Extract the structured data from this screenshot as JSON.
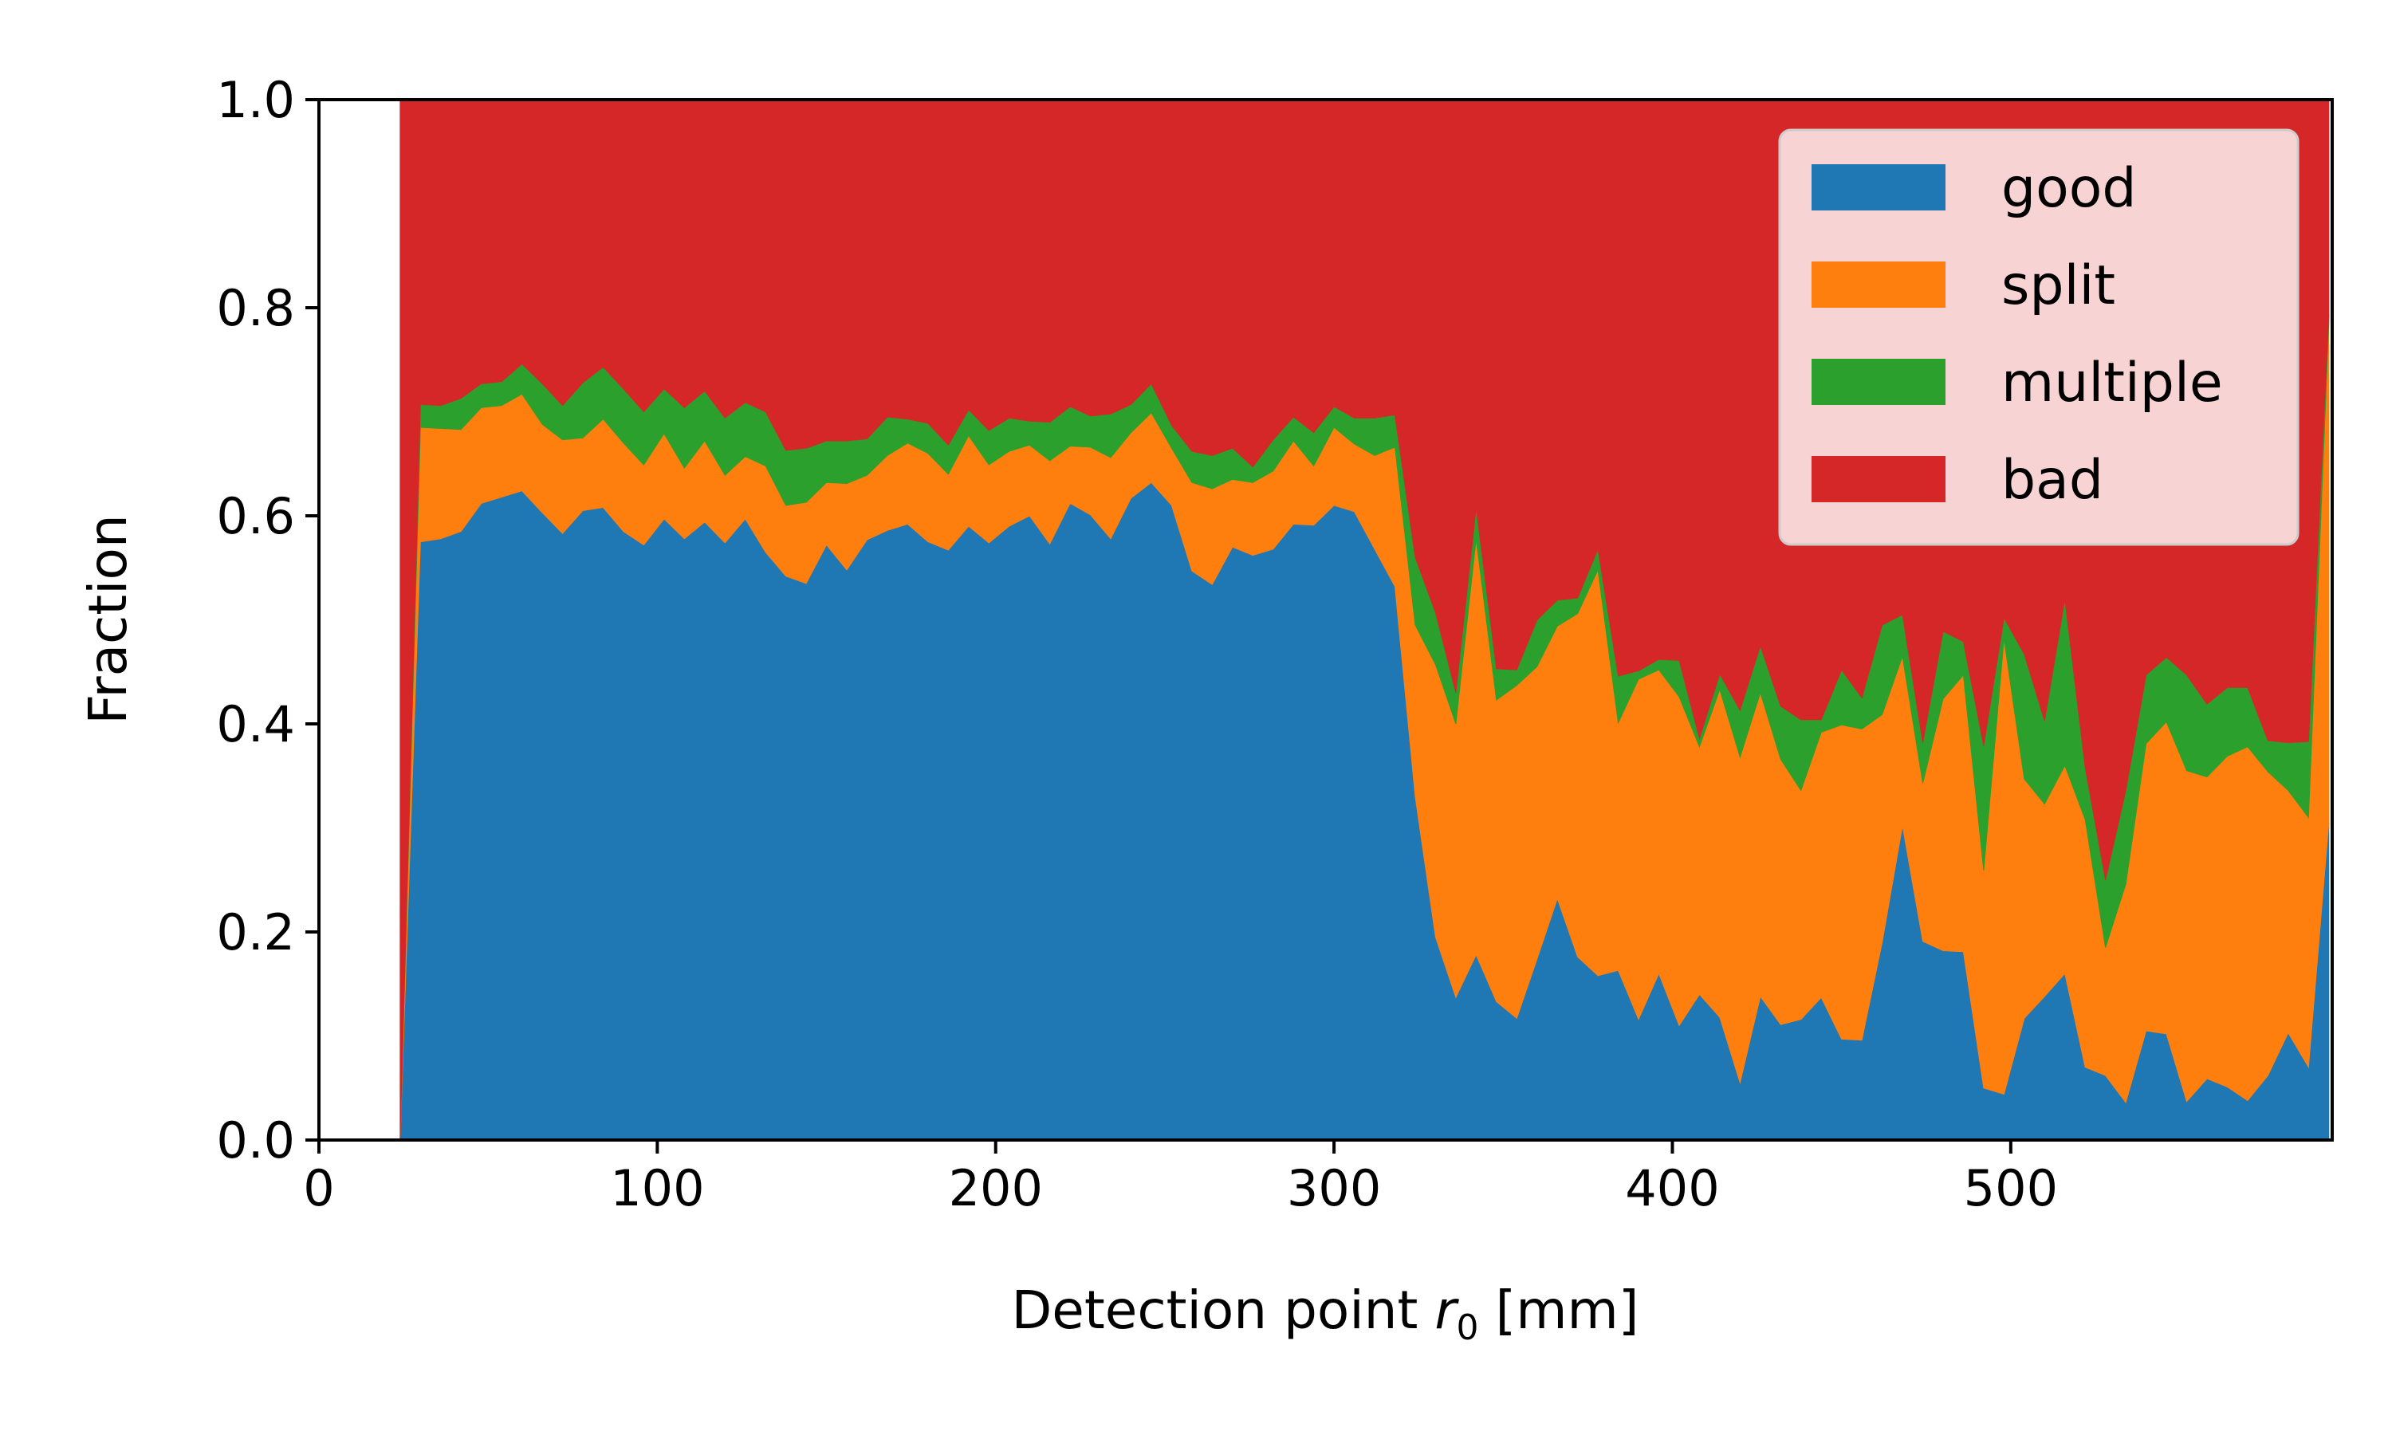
{
  "chart_data": {
    "type": "area",
    "stacked": true,
    "title": "",
    "xlabel_main": "Detection point ",
    "xlabel_var": "r",
    "xlabel_sub": "0",
    "xlabel_unit": " [mm]",
    "ylabel": "Fraction",
    "xlim": [
      0,
      595
    ],
    "ylim": [
      0,
      1
    ],
    "xticks": [
      "0",
      "100",
      "200",
      "300",
      "400",
      "500"
    ],
    "yticks": [
      "0.0",
      "0.2",
      "0.4",
      "0.6",
      "0.8",
      "1.0"
    ],
    "legend_position": "top-right",
    "grid": false,
    "x": [
      24,
      30,
      36,
      42,
      48,
      54,
      60,
      66,
      72,
      78,
      84,
      90,
      96,
      102,
      108,
      114,
      120,
      126,
      132,
      138,
      144,
      150,
      156,
      162,
      168,
      174,
      180,
      186,
      192,
      198,
      204,
      210,
      216,
      222,
      228,
      234,
      240,
      246,
      252,
      258,
      264,
      270,
      276,
      282,
      288,
      294,
      300,
      306,
      312,
      318,
      324,
      330,
      336,
      342,
      348,
      354,
      360,
      366,
      372,
      378,
      384,
      390,
      396,
      402,
      408,
      414,
      420,
      426,
      432,
      438,
      444,
      450,
      456,
      462,
      468,
      474,
      480,
      486,
      492,
      498,
      504,
      510,
      516,
      522,
      528,
      534,
      540,
      546,
      552,
      558,
      564,
      570,
      576,
      582,
      588,
      594
    ],
    "series": [
      {
        "name": "good",
        "color": "#1f77b4",
        "values": [
          0.0,
          0.575,
          0.578,
          0.585,
          0.612,
          0.618,
          0.624,
          0.603,
          0.583,
          0.605,
          0.608,
          0.585,
          0.572,
          0.597,
          0.578,
          0.594,
          0.574,
          0.597,
          0.565,
          0.542,
          0.535,
          0.572,
          0.548,
          0.577,
          0.586,
          0.592,
          0.575,
          0.567,
          0.59,
          0.574,
          0.59,
          0.6,
          0.573,
          0.612,
          0.601,
          0.578,
          0.617,
          0.632,
          0.61,
          0.547,
          0.534,
          0.57,
          0.562,
          0.568,
          0.592,
          0.591,
          0.61,
          0.604,
          0.568,
          0.532,
          0.33,
          0.195,
          0.137,
          0.178,
          0.133,
          0.117,
          0.174,
          0.232,
          0.176,
          0.158,
          0.163,
          0.116,
          0.16,
          0.11,
          0.14,
          0.118,
          0.055,
          0.138,
          0.111,
          0.116,
          0.137,
          0.097,
          0.096,
          0.19,
          0.302,
          0.191,
          0.182,
          0.181,
          0.05,
          0.044,
          0.117,
          0.138,
          0.16,
          0.07,
          0.062,
          0.036,
          0.105,
          0.102,
          0.037,
          0.059,
          0.051,
          0.038,
          0.062,
          0.103,
          0.07,
          0.305
        ]
      },
      {
        "name": "split",
        "color": "#ff7f0e",
        "values": [
          0.0,
          0.11,
          0.106,
          0.098,
          0.092,
          0.088,
          0.093,
          0.085,
          0.09,
          0.07,
          0.085,
          0.085,
          0.077,
          0.082,
          0.068,
          0.078,
          0.065,
          0.06,
          0.083,
          0.068,
          0.078,
          0.06,
          0.083,
          0.062,
          0.072,
          0.078,
          0.085,
          0.073,
          0.087,
          0.075,
          0.072,
          0.068,
          0.08,
          0.055,
          0.065,
          0.078,
          0.063,
          0.067,
          0.055,
          0.085,
          0.092,
          0.065,
          0.07,
          0.075,
          0.08,
          0.057,
          0.075,
          0.065,
          0.09,
          0.134,
          0.165,
          0.262,
          0.263,
          0.4,
          0.29,
          0.32,
          0.281,
          0.262,
          0.33,
          0.39,
          0.238,
          0.327,
          0.292,
          0.316,
          0.238,
          0.315,
          0.313,
          0.292,
          0.255,
          0.22,
          0.255,
          0.302,
          0.299,
          0.219,
          0.163,
          0.152,
          0.242,
          0.266,
          0.209,
          0.438,
          0.23,
          0.185,
          0.2,
          0.238,
          0.123,
          0.21,
          0.276,
          0.3,
          0.318,
          0.29,
          0.318,
          0.34,
          0.292,
          0.233,
          0.24,
          0.48
        ]
      },
      {
        "name": "multiple",
        "color": "#2ca02c",
        "values": [
          0.0,
          0.022,
          0.022,
          0.03,
          0.023,
          0.023,
          0.029,
          0.039,
          0.033,
          0.053,
          0.05,
          0.052,
          0.051,
          0.043,
          0.058,
          0.048,
          0.055,
          0.052,
          0.052,
          0.053,
          0.052,
          0.04,
          0.041,
          0.035,
          0.037,
          0.023,
          0.029,
          0.028,
          0.025,
          0.033,
          0.032,
          0.023,
          0.037,
          0.038,
          0.03,
          0.042,
          0.027,
          0.028,
          0.022,
          0.03,
          0.032,
          0.03,
          0.015,
          0.03,
          0.023,
          0.032,
          0.02,
          0.025,
          0.036,
          0.031,
          0.065,
          0.05,
          0.03,
          0.03,
          0.03,
          0.015,
          0.045,
          0.025,
          0.015,
          0.02,
          0.045,
          0.008,
          0.01,
          0.035,
          0.008,
          0.015,
          0.045,
          0.045,
          0.051,
          0.068,
          0.012,
          0.053,
          0.03,
          0.086,
          0.04,
          0.039,
          0.065,
          0.032,
          0.12,
          0.02,
          0.12,
          0.08,
          0.16,
          0.05,
          0.065,
          0.09,
          0.066,
          0.062,
          0.092,
          0.07,
          0.066,
          0.057,
          0.03,
          0.046,
          0.073,
          0.008
        ]
      },
      {
        "name": "bad",
        "color": "#d62728",
        "values": [
          1.0,
          0.293,
          0.294,
          0.287,
          0.273,
          0.271,
          0.254,
          0.273,
          0.294,
          0.272,
          0.257,
          0.278,
          0.3,
          0.278,
          0.296,
          0.28,
          0.306,
          0.291,
          0.3,
          0.337,
          0.335,
          0.328,
          0.328,
          0.326,
          0.305,
          0.307,
          0.311,
          0.332,
          0.298,
          0.318,
          0.306,
          0.309,
          0.31,
          0.295,
          0.304,
          0.302,
          0.293,
          0.273,
          0.313,
          0.338,
          0.342,
          0.335,
          0.353,
          0.327,
          0.305,
          0.32,
          0.295,
          0.306,
          0.306,
          0.303,
          0.44,
          0.493,
          0.57,
          0.392,
          0.547,
          0.548,
          0.5,
          0.481,
          0.479,
          0.432,
          0.554,
          0.549,
          0.538,
          0.539,
          0.614,
          0.552,
          0.587,
          0.525,
          0.583,
          0.596,
          0.596,
          0.548,
          0.575,
          0.505,
          0.495,
          0.618,
          0.511,
          0.521,
          0.621,
          0.498,
          0.533,
          0.597,
          0.48,
          0.642,
          0.75,
          0.664,
          0.553,
          0.536,
          0.553,
          0.581,
          0.565,
          0.565,
          0.616,
          0.618,
          0.617,
          0.207
        ]
      }
    ]
  }
}
